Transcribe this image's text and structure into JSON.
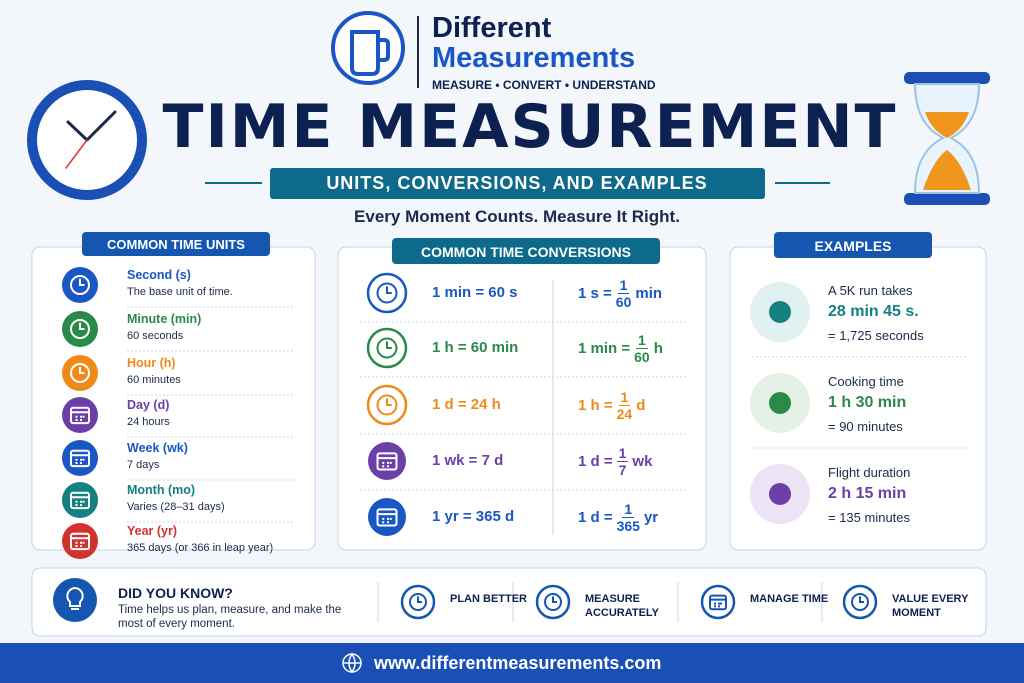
{
  "header": {
    "brand_top": "Different",
    "brand_bottom": "Measurements",
    "tagline": "MEASURE • CONVERT • UNDERSTAND",
    "title": "TIME MEASUREMENT",
    "subtitle": "UNITS, CONVERSIONS, AND EXAMPLES",
    "slogan": "Every Moment Counts. Measure It Right."
  },
  "units": {
    "title": "COMMON TIME UNITS",
    "items": [
      {
        "name": "Second (s)",
        "desc": "The base unit of time."
      },
      {
        "name": "Minute (min)",
        "desc": "60 seconds"
      },
      {
        "name": "Hour (h)",
        "desc": "60 minutes"
      },
      {
        "name": "Day (d)",
        "desc": "24 hours"
      },
      {
        "name": "Week (wk)",
        "desc": "7 days"
      },
      {
        "name": "Month (mo)",
        "desc": "Varies (28–31 days)"
      },
      {
        "name": "Year (yr)",
        "desc": "365 days (or 366 in leap year)"
      }
    ]
  },
  "conversions": {
    "title": "COMMON TIME CONVERSIONS",
    "rows": [
      {
        "left": "1 min = 60 s",
        "right": {
          "lhs": "1 s =",
          "num": "1",
          "den": "60",
          "unit": "min"
        }
      },
      {
        "left": "1 h = 60 min",
        "right": {
          "lhs": "1 min =",
          "num": "1",
          "den": "60",
          "unit": "h"
        }
      },
      {
        "left": "1 d = 24 h",
        "right": {
          "lhs": "1 h =",
          "num": "1",
          "den": "24",
          "unit": "d"
        }
      },
      {
        "left": "1 wk = 7 d",
        "right": {
          "lhs": "1 d =",
          "num": "1",
          "den": "7",
          "unit": "wk"
        }
      },
      {
        "left": "1 yr = 365 d",
        "right": {
          "lhs": "1 d =",
          "num": "1",
          "den": "365",
          "unit": "yr"
        }
      }
    ]
  },
  "examples": {
    "title": "EXAMPLES",
    "items": [
      {
        "label": "A 5K run takes",
        "value": "28 min 45 s.",
        "result": "= 1,725 seconds"
      },
      {
        "label": "Cooking time",
        "value": "1 h 30 min",
        "result": "= 90 minutes"
      },
      {
        "label": "Flight duration",
        "value": "2 h 15 min",
        "result": "= 135 minutes"
      }
    ]
  },
  "did_you_know": {
    "title": "DID YOU KNOW?",
    "text": "Time helps us plan, measure, and make the most of every moment.",
    "tips": [
      "PLAN BETTER",
      "MEASURE ACCURATELY",
      "MANAGE TIME",
      "VALUE EVERY MOMENT"
    ]
  },
  "footer": {
    "url": "www.differentmeasurements.com"
  }
}
